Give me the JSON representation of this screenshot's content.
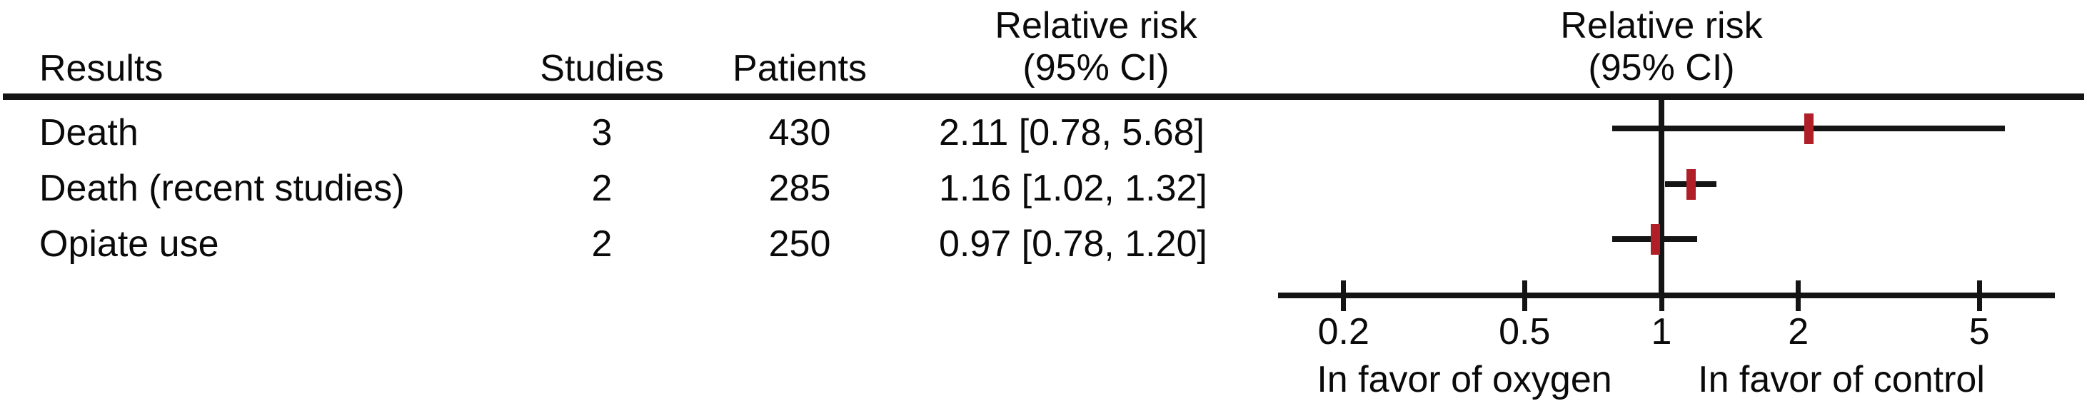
{
  "table": {
    "headers": {
      "results": "Results",
      "studies": "Studies",
      "patients": "Patients",
      "rr_line1": "Relative risk",
      "rr_line2": "(95% CI)"
    },
    "rows": [
      {
        "result": "Death",
        "studies": "3",
        "patients": "430",
        "rr_text": "2.11 [0.78, 5.68]"
      },
      {
        "result": "Death (recent studies)",
        "studies": "2",
        "patients": "285",
        "rr_text": "1.16 [1.02, 1.32]"
      },
      {
        "result": "Opiate use",
        "studies": "2",
        "patients": "250",
        "rr_text": "0.97 [0.78, 1.20]"
      }
    ]
  },
  "plot": {
    "header_line1": "Relative risk",
    "header_line2": "(95% CI)",
    "tick_labels": [
      "0.2",
      "0.5",
      "1",
      "2",
      "5"
    ],
    "axis_label_left": "In favor of oxygen",
    "axis_label_right": "In favor of control",
    "marker_color": "#b01e27",
    "line_color": "#141414"
  },
  "chart_data": {
    "type": "forest",
    "x_scale": "log",
    "x_ticks": [
      0.2,
      0.5,
      1,
      2,
      5
    ],
    "x_range_approx": [
      0.14,
      7.3
    ],
    "reference_line": 1,
    "title": "Relative risk (95% CI)",
    "xlabel_left": "In favor of oxygen",
    "xlabel_right": "In favor of control",
    "rows": [
      {
        "label": "Death",
        "studies": 3,
        "patients": 430,
        "rr": 2.11,
        "ci_low": 0.78,
        "ci_high": 5.68
      },
      {
        "label": "Death (recent studies)",
        "studies": 2,
        "patients": 285,
        "rr": 1.16,
        "ci_low": 1.02,
        "ci_high": 1.32
      },
      {
        "label": "Opiate use",
        "studies": 2,
        "patients": 250,
        "rr": 0.97,
        "ci_low": 0.78,
        "ci_high": 1.2
      }
    ]
  }
}
